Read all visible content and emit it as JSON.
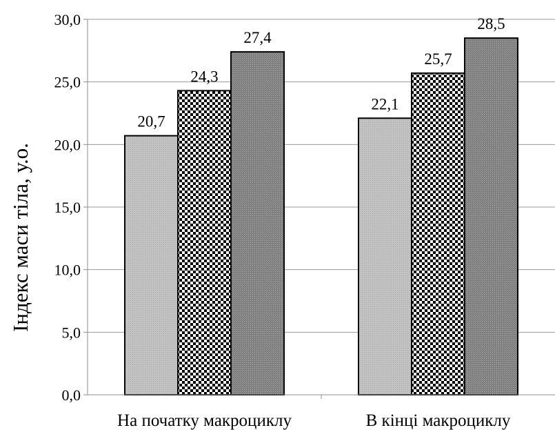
{
  "chart_data": {
    "type": "bar",
    "categories": [
      "На початку макроциклу",
      "В кінці макроциклу"
    ],
    "series": [
      {
        "values": [
          20.7,
          22.1
        ],
        "labels": [
          "20,7",
          "22,1"
        ],
        "color": "#bdbdbd",
        "pattern": "solid-light-gray"
      },
      {
        "values": [
          24.3,
          25.7
        ],
        "labels": [
          "24,3",
          "25,7"
        ],
        "color": "#000000",
        "pattern": "checkerboard"
      },
      {
        "values": [
          27.4,
          28.5
        ],
        "labels": [
          "27,4",
          "28,5"
        ],
        "color": "#8a8a8a",
        "pattern": "dark-gray-stipple"
      }
    ],
    "title": "",
    "xlabel": "",
    "ylabel": "Індекс маси тіла, у.о.",
    "ylim": [
      0,
      30
    ],
    "yticks": [
      0,
      5,
      10,
      15,
      20,
      25,
      30
    ],
    "ytick_labels": [
      "0,0",
      "5,0",
      "10,0",
      "15,0",
      "20,0",
      "25,0",
      "30,0"
    ],
    "grid": true
  }
}
